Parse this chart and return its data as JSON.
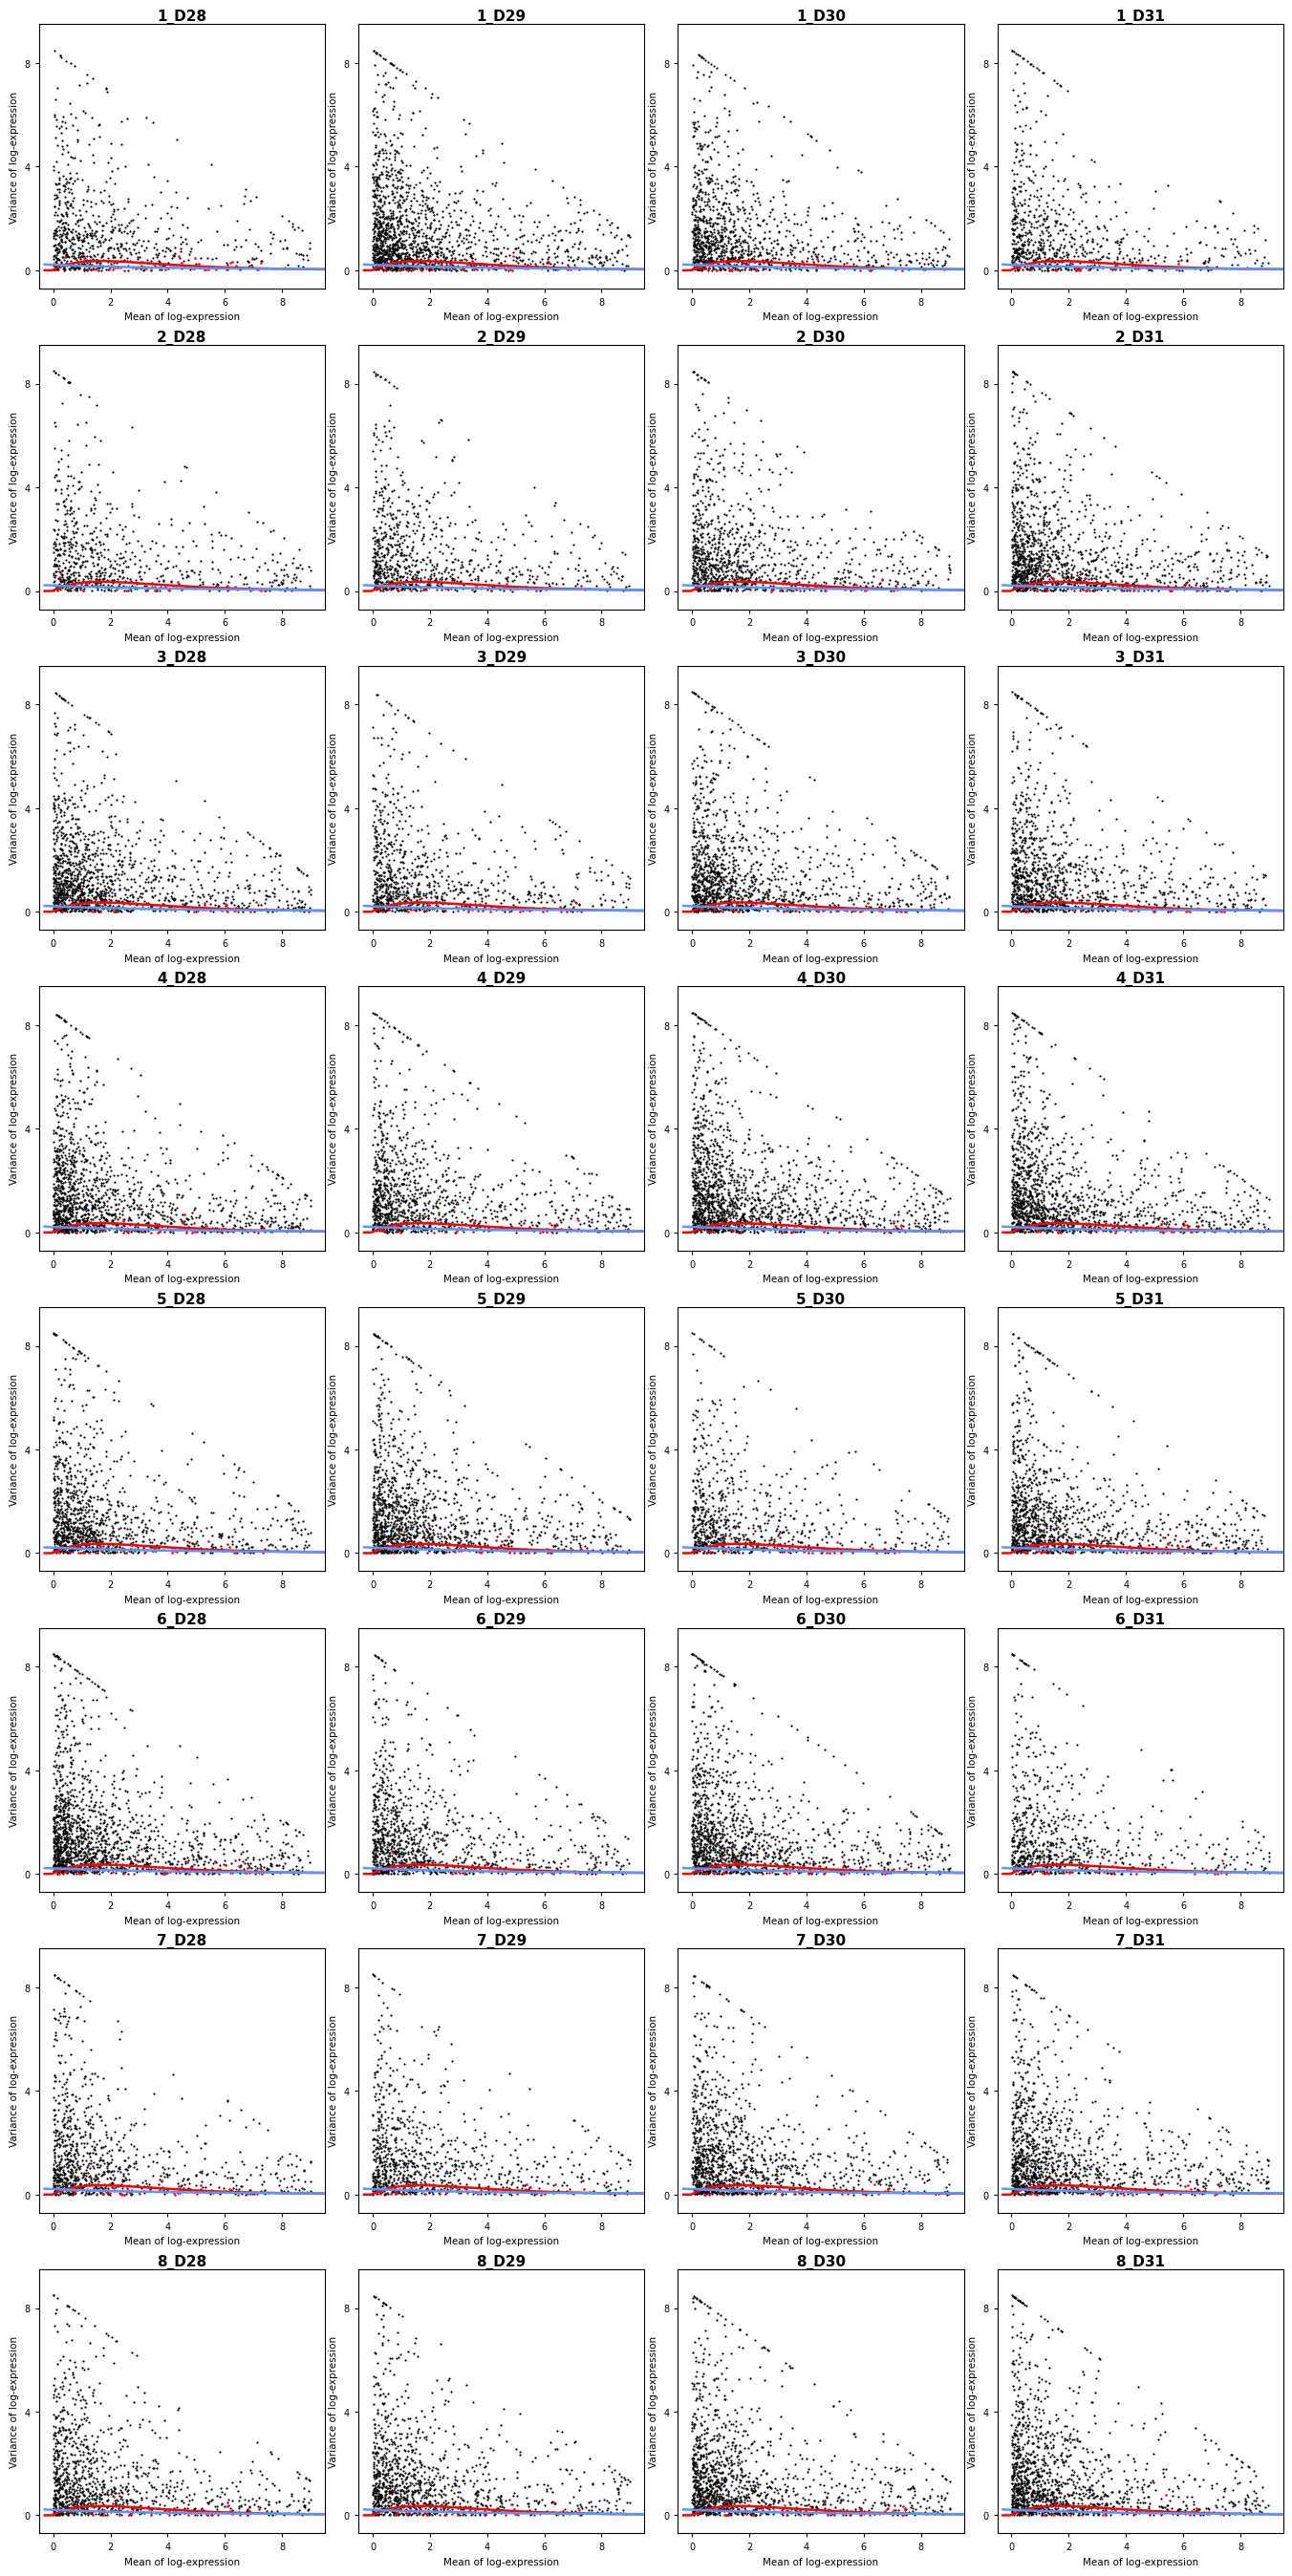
{
  "donors": [
    "1",
    "2",
    "3",
    "4",
    "5",
    "6",
    "7",
    "8"
  ],
  "days": [
    "D28",
    "D29",
    "D30",
    "D31"
  ],
  "nrows": 8,
  "ncols": 4,
  "xlim": [
    -0.5,
    9.5
  ],
  "ylim": [
    -0.7,
    9.5
  ],
  "xticks": [
    0,
    2,
    4,
    6,
    8
  ],
  "yticks": [
    0,
    4,
    8
  ],
  "xlabel": "Mean of log-expression",
  "ylabel": "Variance of log-expression",
  "point_color": "#000000",
  "spike_color": "#ff0000",
  "trend_color": "#5599ff",
  "point_size": 2.5,
  "spike_size": 3.5,
  "background_color": "#ffffff",
  "title_fontsize": 11,
  "axis_fontsize": 7.5,
  "tick_fontsize": 7,
  "seed": 42
}
